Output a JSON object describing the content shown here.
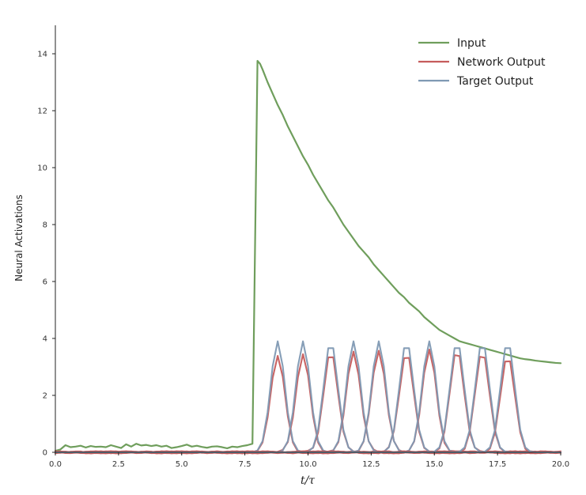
{
  "chart_data": {
    "type": "line",
    "xlabel": "t/τ",
    "ylabel": "Neural Activations",
    "xlim": [
      0,
      20
    ],
    "ylim": [
      0,
      15
    ],
    "x_ticks": [
      0,
      2.5,
      5,
      7.5,
      10,
      12.5,
      15,
      17.5,
      20
    ],
    "x_tick_labels": [
      "0.0",
      "2.5",
      "5.0",
      "7.5",
      "10.0",
      "12.5",
      "15.0",
      "17.5",
      "20.0"
    ],
    "y_ticks": [
      0,
      2,
      4,
      6,
      8,
      10,
      12,
      14
    ],
    "y_tick_labels": [
      "0",
      "2",
      "4",
      "6",
      "8",
      "10",
      "12",
      "14"
    ],
    "grid": false,
    "legend_position": "top-right",
    "colors": {
      "input": "#6f9e5c",
      "network": "#c65c5c",
      "target": "#7f99b3",
      "axis": "#222222"
    },
    "legend": [
      {
        "label": "Input",
        "color": "#6f9e5c"
      },
      {
        "label": "Network Output",
        "color": "#c65c5c"
      },
      {
        "label": "Target Output",
        "color": "#7f99b3"
      }
    ],
    "input_series": {
      "name": "Input",
      "x": [
        0,
        0.2,
        0.4,
        0.6,
        0.8,
        1.0,
        1.2,
        1.4,
        1.6,
        1.8,
        2.0,
        2.2,
        2.4,
        2.6,
        2.8,
        3.0,
        3.2,
        3.4,
        3.6,
        3.8,
        4.0,
        4.2,
        4.4,
        4.6,
        4.8,
        5.0,
        5.2,
        5.4,
        5.6,
        5.8,
        6.0,
        6.2,
        6.4,
        6.6,
        6.8,
        7.0,
        7.2,
        7.4,
        7.6,
        7.8,
        8.0,
        8.1,
        8.2,
        8.4,
        8.6,
        8.8,
        9.0,
        9.2,
        9.4,
        9.6,
        9.8,
        10.0,
        10.2,
        10.4,
        10.6,
        10.8,
        11.0,
        11.2,
        11.4,
        11.6,
        11.8,
        12.0,
        12.2,
        12.4,
        12.6,
        12.8,
        13.0,
        13.2,
        13.4,
        13.6,
        13.8,
        14.0,
        14.2,
        14.4,
        14.6,
        14.8,
        15.0,
        15.2,
        15.4,
        15.6,
        15.8,
        16.0,
        16.2,
        16.4,
        16.6,
        16.8,
        17.0,
        17.2,
        17.4,
        17.6,
        17.8,
        18.0,
        18.2,
        18.4,
        18.6,
        18.8,
        19.0,
        19.2,
        19.4,
        19.6,
        19.8,
        20.0
      ],
      "y": [
        0.05,
        0.1,
        0.25,
        0.18,
        0.2,
        0.23,
        0.17,
        0.22,
        0.19,
        0.2,
        0.18,
        0.25,
        0.2,
        0.15,
        0.28,
        0.2,
        0.3,
        0.24,
        0.26,
        0.22,
        0.25,
        0.2,
        0.23,
        0.15,
        0.18,
        0.22,
        0.27,
        0.2,
        0.23,
        0.19,
        0.16,
        0.2,
        0.21,
        0.18,
        0.14,
        0.2,
        0.18,
        0.22,
        0.25,
        0.3,
        13.75,
        13.65,
        13.45,
        13.0,
        12.6,
        12.2,
        11.85,
        11.45,
        11.1,
        10.75,
        10.4,
        10.1,
        9.75,
        9.45,
        9.15,
        8.85,
        8.6,
        8.3,
        8.0,
        7.75,
        7.5,
        7.25,
        7.05,
        6.85,
        6.6,
        6.4,
        6.2,
        6.0,
        5.8,
        5.6,
        5.45,
        5.25,
        5.1,
        4.95,
        4.75,
        4.6,
        4.45,
        4.3,
        4.2,
        4.1,
        4.0,
        3.9,
        3.85,
        3.8,
        3.75,
        3.7,
        3.65,
        3.6,
        3.55,
        3.5,
        3.45,
        3.4,
        3.35,
        3.3,
        3.27,
        3.25,
        3.22,
        3.2,
        3.18,
        3.16,
        3.14,
        3.13
      ]
    },
    "bump_centers": [
      8.8,
      9.8,
      10.9,
      11.8,
      12.8,
      13.9,
      14.8,
      15.9,
      16.9,
      17.9
    ],
    "target_peak": 3.9,
    "network_peaks": [
      3.4,
      3.45,
      3.55,
      3.55,
      3.6,
      3.55,
      3.6,
      3.6,
      3.55,
      3.4
    ]
  }
}
